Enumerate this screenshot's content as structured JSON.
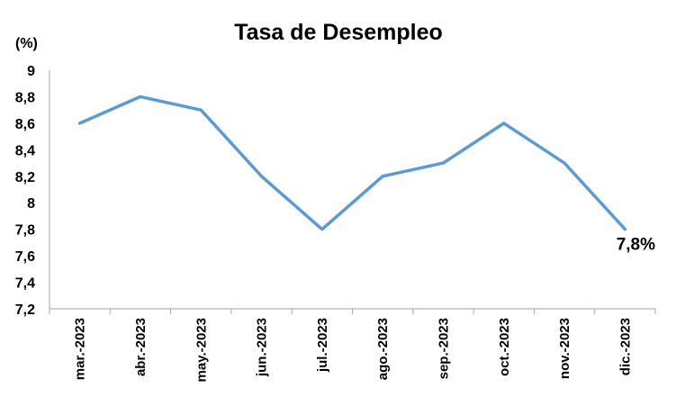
{
  "chart_data": {
    "type": "line",
    "title": "Tasa de Desempleo",
    "unit_label": "(%)",
    "categories": [
      "mar.-2023",
      "abr.-2023",
      "may.-2023",
      "jun.-2023",
      "jul.-2023",
      "ago.-2023",
      "sep.-2023",
      "oct.-2023",
      "nov.-2023",
      "dic.-2023"
    ],
    "series": [
      {
        "values": [
          8.6,
          8.8,
          8.7,
          8.2,
          7.8,
          8.2,
          8.3,
          8.6,
          8.3,
          7.8
        ],
        "color": "#5b9bd5"
      }
    ],
    "ylim": [
      7.2,
      9.0
    ],
    "yticks": [
      "7,2",
      "7,4",
      "7,6",
      "7,8",
      "8",
      "8,2",
      "8,4",
      "8,6",
      "8,8",
      "9"
    ],
    "ytick_values": [
      7.2,
      7.4,
      7.6,
      7.8,
      8.0,
      8.2,
      8.4,
      8.6,
      8.8,
      9.0
    ],
    "grid": false,
    "legend": "none",
    "annotation": {
      "text": "7,8%",
      "category": "dic.-2023"
    }
  }
}
